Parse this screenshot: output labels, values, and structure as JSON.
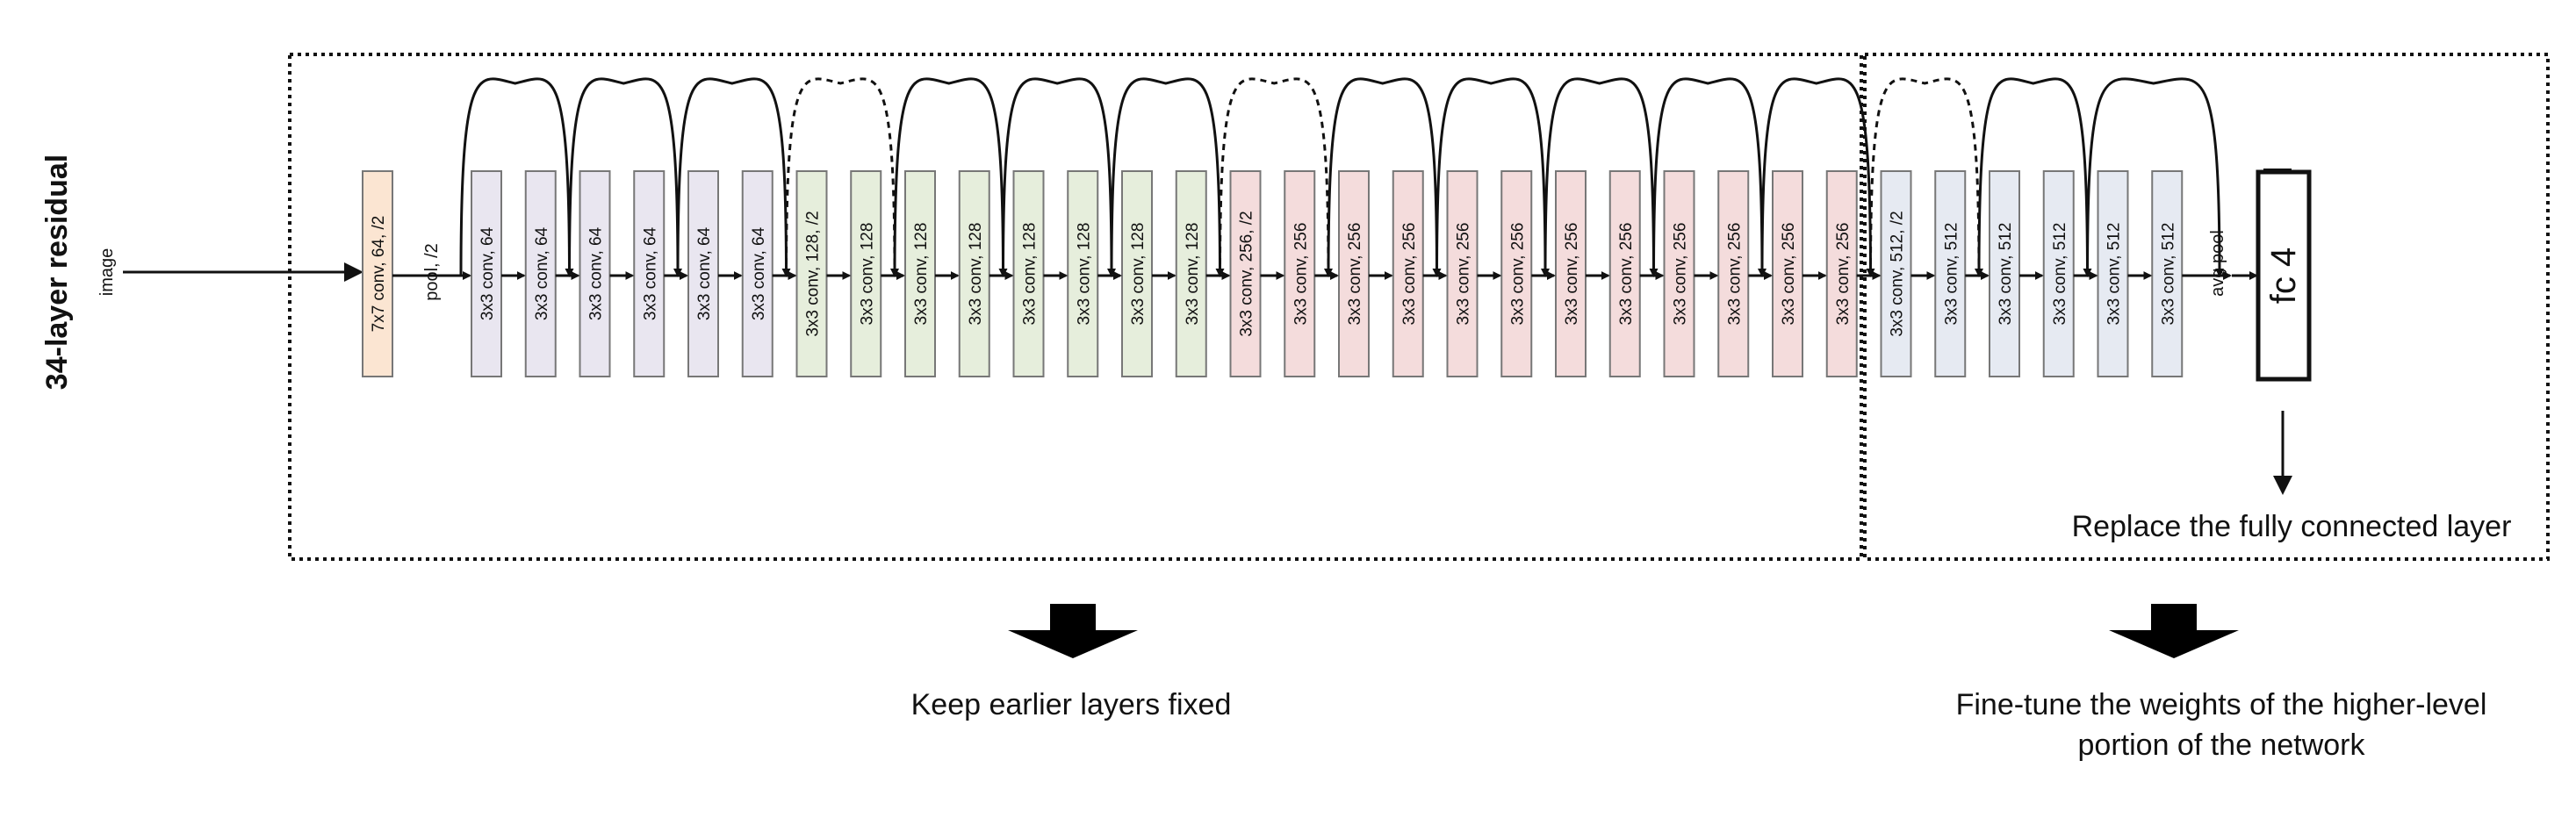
{
  "side_label": "34-layer residual",
  "input_label": "image",
  "pool_label": "pool, /2",
  "avgpool_label": "avg pool",
  "fc_label": "fc 4",
  "layers": [
    {
      "label": "7x7 conv, 64, /2",
      "group": "stem"
    },
    {
      "label": "3x3 conv, 64",
      "group": "g64"
    },
    {
      "label": "3x3 conv, 64",
      "group": "g64"
    },
    {
      "label": "3x3 conv, 64",
      "group": "g64"
    },
    {
      "label": "3x3 conv, 64",
      "group": "g64"
    },
    {
      "label": "3x3 conv, 64",
      "group": "g64"
    },
    {
      "label": "3x3 conv, 64",
      "group": "g64"
    },
    {
      "label": "3x3 conv, 128, /2",
      "group": "g128"
    },
    {
      "label": "3x3 conv, 128",
      "group": "g128"
    },
    {
      "label": "3x3 conv, 128",
      "group": "g128"
    },
    {
      "label": "3x3 conv, 128",
      "group": "g128"
    },
    {
      "label": "3x3 conv, 128",
      "group": "g128"
    },
    {
      "label": "3x3 conv, 128",
      "group": "g128"
    },
    {
      "label": "3x3 conv, 128",
      "group": "g128"
    },
    {
      "label": "3x3 conv, 128",
      "group": "g128"
    },
    {
      "label": "3x3 conv, 256, /2",
      "group": "g256"
    },
    {
      "label": "3x3 conv, 256",
      "group": "g256"
    },
    {
      "label": "3x3 conv, 256",
      "group": "g256"
    },
    {
      "label": "3x3 conv, 256",
      "group": "g256"
    },
    {
      "label": "3x3 conv, 256",
      "group": "g256"
    },
    {
      "label": "3x3 conv, 256",
      "group": "g256"
    },
    {
      "label": "3x3 conv, 256",
      "group": "g256"
    },
    {
      "label": "3x3 conv, 256",
      "group": "g256"
    },
    {
      "label": "3x3 conv, 256",
      "group": "g256"
    },
    {
      "label": "3x3 conv, 256",
      "group": "g256"
    },
    {
      "label": "3x3 conv, 256",
      "group": "g256"
    },
    {
      "label": "3x3 conv, 256",
      "group": "g256"
    },
    {
      "label": "3x3 conv, 512, /2",
      "group": "g512"
    },
    {
      "label": "3x3 conv, 512",
      "group": "g512"
    },
    {
      "label": "3x3 conv, 512",
      "group": "g512"
    },
    {
      "label": "3x3 conv, 512",
      "group": "g512"
    },
    {
      "label": "3x3 conv, 512",
      "group": "g512"
    },
    {
      "label": "3x3 conv, 512",
      "group": "g512"
    }
  ],
  "group_colors": {
    "stem": "#fbe5d2",
    "g64": "#e9e6f0",
    "g128": "#e6eedc",
    "g256": "#f4dcdc",
    "g512": "#e6eaf2"
  },
  "captions": {
    "replace": "Replace the fully connected layer",
    "keep": "Keep earlier layers fixed",
    "finetune": "Fine-tune the weights of the higher-level portion of the network"
  }
}
